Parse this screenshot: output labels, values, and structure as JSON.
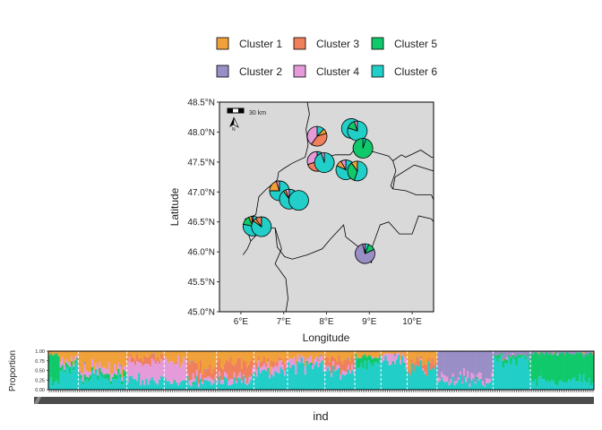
{
  "colors": {
    "cluster_1": "#F0A13A",
    "cluster_2": "#9A8EC6",
    "cluster_3": "#F07F5C",
    "cluster_4": "#E59BD9",
    "cluster_5": "#10C96A",
    "cluster_6": "#22CEC8",
    "map_background": "#D9D9D9"
  },
  "legend": {
    "items": [
      {
        "label": "Cluster 1",
        "color_key": "cluster_1"
      },
      {
        "label": "Cluster 3",
        "color_key": "cluster_3"
      },
      {
        "label": "Cluster 5",
        "color_key": "cluster_5"
      },
      {
        "label": "Cluster 2",
        "color_key": "cluster_2"
      },
      {
        "label": "Cluster 4",
        "color_key": "cluster_4"
      },
      {
        "label": "Cluster 6",
        "color_key": "cluster_6"
      }
    ]
  },
  "map": {
    "scale_bar_label": "30 km",
    "north_label": "N"
  },
  "chart_data": [
    {
      "type": "scatter",
      "subtype": "pie-map",
      "xlabel": "Longitude",
      "ylabel": "Latitude",
      "xlim": [
        5.5,
        10.5
      ],
      "ylim": [
        45.0,
        48.5
      ],
      "x_ticks": [
        6,
        7,
        8,
        9,
        10
      ],
      "x_tick_labels": [
        "6°E",
        "7°E",
        "8°E",
        "9°E",
        "10°E"
      ],
      "y_ticks": [
        45.0,
        45.5,
        46.0,
        46.5,
        47.0,
        47.5,
        48.0,
        48.5
      ],
      "y_tick_labels": [
        "45.0°N",
        "45.5°N",
        "46.0°N",
        "46.5°N",
        "47.0°N",
        "47.5°N",
        "48.0°N",
        "48.5°N"
      ],
      "grid": false,
      "legend_position": "top",
      "sites": [
        {
          "lon": 6.28,
          "lat": 46.43,
          "props": {
            "cluster_1": 0.05,
            "cluster_5": 0.15,
            "cluster_6": 0.78,
            "cluster_4": 0.02
          }
        },
        {
          "lon": 6.48,
          "lat": 46.42,
          "props": {
            "cluster_6": 0.85,
            "cluster_3": 0.1,
            "cluster_1": 0.05
          }
        },
        {
          "lon": 6.9,
          "lat": 47.02,
          "props": {
            "cluster_6": 0.75,
            "cluster_1": 0.2,
            "cluster_4": 0.05
          }
        },
        {
          "lon": 7.13,
          "lat": 46.88,
          "props": {
            "cluster_6": 0.9,
            "cluster_4": 0.06,
            "cluster_1": 0.04
          }
        },
        {
          "lon": 7.35,
          "lat": 46.86,
          "props": {
            "cluster_6": 1.0
          }
        },
        {
          "lon": 7.78,
          "lat": 47.93,
          "props": {
            "cluster_3": 0.4,
            "cluster_4": 0.4,
            "cluster_6": 0.12,
            "cluster_1": 0.08
          }
        },
        {
          "lon": 7.78,
          "lat": 47.51,
          "props": {
            "cluster_3": 0.35,
            "cluster_4": 0.3,
            "cluster_6": 0.25,
            "cluster_1": 0.1
          }
        },
        {
          "lon": 7.95,
          "lat": 47.49,
          "props": {
            "cluster_6": 0.95,
            "cluster_4": 0.05
          }
        },
        {
          "lon": 8.45,
          "lat": 47.37,
          "props": {
            "cluster_6": 0.82,
            "cluster_1": 0.1,
            "cluster_4": 0.08
          }
        },
        {
          "lon": 8.72,
          "lat": 47.35,
          "props": {
            "cluster_6": 0.55,
            "cluster_5": 0.35,
            "cluster_1": 0.1
          }
        },
        {
          "lon": 8.58,
          "lat": 48.06,
          "props": {
            "cluster_6": 1.0
          }
        },
        {
          "lon": 8.72,
          "lat": 48.02,
          "props": {
            "cluster_6": 0.8,
            "cluster_5": 0.15,
            "cluster_4": 0.05
          }
        },
        {
          "lon": 8.85,
          "lat": 47.73,
          "props": {
            "cluster_5": 0.95,
            "cluster_6": 0.05
          }
        },
        {
          "lon": 8.9,
          "lat": 45.97,
          "props": {
            "cluster_2": 0.78,
            "cluster_5": 0.12,
            "cluster_6": 0.06,
            "cluster_4": 0.04
          }
        }
      ]
    },
    {
      "type": "bar",
      "subtype": "stacked-admixture",
      "xlabel": "ind",
      "ylabel": "Proportion",
      "ylim": [
        0,
        1
      ],
      "y_ticks": [
        0,
        0.25,
        0.5,
        0.75,
        1
      ],
      "y_tick_labels": [
        "0.00",
        "0.25",
        "0.50",
        "0.75",
        "1.00"
      ],
      "grid": false,
      "series_order": [
        "cluster_1",
        "cluster_2",
        "cluster_3",
        "cluster_4",
        "cluster_5",
        "cluster_6"
      ],
      "segments": [
        {
          "count": 6,
          "mix": {
            "cluster_5": 0.7,
            "cluster_6": 0.2,
            "cluster_1": 0.1
          }
        },
        {
          "count": 10,
          "mix": {
            "cluster_6": 0.55,
            "cluster_1": 0.25,
            "cluster_4": 0.1,
            "cluster_5": 0.1
          }
        },
        {
          "count": 26,
          "mix": {
            "cluster_1": 0.45,
            "cluster_4": 0.15,
            "cluster_6": 0.3,
            "cluster_5": 0.1
          }
        },
        {
          "count": 20,
          "mix": {
            "cluster_4": 0.45,
            "cluster_3": 0.15,
            "cluster_6": 0.25,
            "cluster_1": 0.15
          }
        },
        {
          "count": 12,
          "mix": {
            "cluster_4": 0.55,
            "cluster_1": 0.25,
            "cluster_6": 0.2
          }
        },
        {
          "count": 16,
          "mix": {
            "cluster_1": 0.4,
            "cluster_3": 0.3,
            "cluster_6": 0.2,
            "cluster_4": 0.1
          }
        },
        {
          "count": 20,
          "mix": {
            "cluster_3": 0.35,
            "cluster_1": 0.3,
            "cluster_6": 0.25,
            "cluster_4": 0.1
          }
        },
        {
          "count": 18,
          "mix": {
            "cluster_6": 0.5,
            "cluster_1": 0.25,
            "cluster_4": 0.15,
            "cluster_3": 0.1
          }
        },
        {
          "count": 20,
          "mix": {
            "cluster_6": 0.65,
            "cluster_1": 0.2,
            "cluster_4": 0.15
          }
        },
        {
          "count": 16,
          "mix": {
            "cluster_6": 0.45,
            "cluster_3": 0.25,
            "cluster_1": 0.2,
            "cluster_4": 0.1
          }
        },
        {
          "count": 14,
          "mix": {
            "cluster_6": 0.7,
            "cluster_1": 0.15,
            "cluster_5": 0.15
          }
        },
        {
          "count": 14,
          "mix": {
            "cluster_6": 0.75,
            "cluster_4": 0.15,
            "cluster_1": 0.1
          }
        },
        {
          "count": 16,
          "mix": {
            "cluster_6": 0.6,
            "cluster_1": 0.25,
            "cluster_3": 0.15
          }
        },
        {
          "count": 30,
          "mix": {
            "cluster_2": 0.7,
            "cluster_6": 0.2,
            "cluster_4": 0.1
          }
        },
        {
          "count": 20,
          "mix": {
            "cluster_6": 0.8,
            "cluster_2": 0.1,
            "cluster_5": 0.1
          }
        },
        {
          "count": 34,
          "mix": {
            "cluster_5": 0.75,
            "cluster_6": 0.2,
            "cluster_2": 0.05
          }
        }
      ],
      "separator_positions": [
        16,
        42,
        62,
        74,
        90,
        110,
        128,
        148,
        164,
        178,
        192,
        208,
        238,
        258
      ]
    }
  ]
}
